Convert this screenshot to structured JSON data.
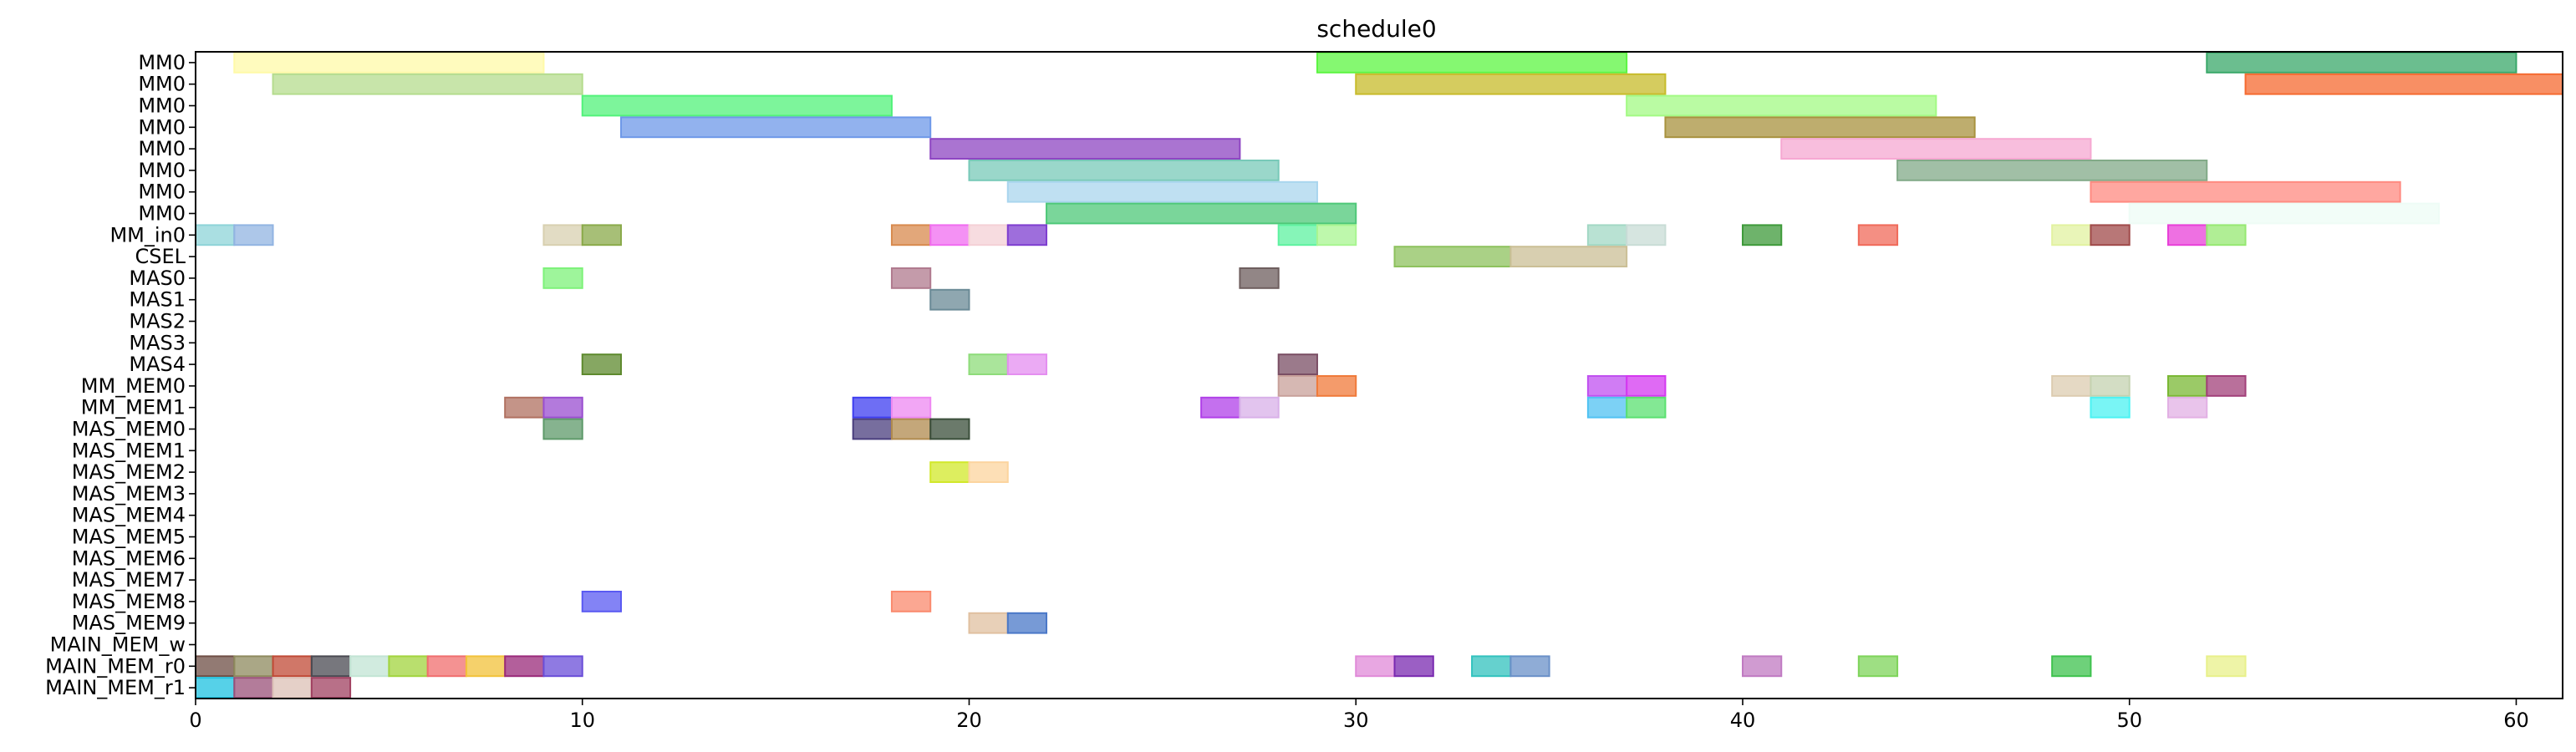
{
  "chart_data": {
    "type": "gantt",
    "title": "schedule0",
    "xlabel": "",
    "ylabel": "",
    "xlim": [
      0,
      61.2
    ],
    "x_ticks": [
      0,
      10,
      20,
      30,
      40,
      50,
      60
    ],
    "grid": false,
    "rows": [
      "MM0",
      "MM0",
      "MM0",
      "MM0",
      "MM0",
      "MM0",
      "MM0",
      "MM0",
      "MM_in0",
      "CSEL",
      "MAS0",
      "MAS1",
      "MAS2",
      "MAS3",
      "MAS4",
      "MM_MEM0",
      "MM_MEM1",
      "MAS_MEM0",
      "MAS_MEM1",
      "MAS_MEM2",
      "MAS_MEM3",
      "MAS_MEM4",
      "MAS_MEM5",
      "MAS_MEM6",
      "MAS_MEM7",
      "MAS_MEM8",
      "MAS_MEM9",
      "MAIN_MEM_w",
      "MAIN_MEM_r0",
      "MAIN_MEM_r1"
    ],
    "tasks": [
      {
        "row": 0,
        "start": 1,
        "end": 9,
        "color": "#fffaa8"
      },
      {
        "row": 0,
        "start": 29,
        "end": 37,
        "color": "#5cf542"
      },
      {
        "row": 0,
        "start": 52,
        "end": 60,
        "color": "#3aa86a"
      },
      {
        "row": 1,
        "start": 2,
        "end": 10,
        "color": "#b5dc8e"
      },
      {
        "row": 1,
        "start": 30,
        "end": 38,
        "color": "#c7bb2a"
      },
      {
        "row": 1,
        "start": 53,
        "end": 61.2,
        "color": "#f56a30"
      },
      {
        "row": 2,
        "start": 10,
        "end": 18,
        "color": "#52f27a"
      },
      {
        "row": 2,
        "start": 37,
        "end": 45,
        "color": "#a3fa84"
      },
      {
        "row": 3,
        "start": 11,
        "end": 19,
        "color": "#6e98e8"
      },
      {
        "row": 3,
        "start": 38,
        "end": 46,
        "color": "#a8923e"
      },
      {
        "row": 4,
        "start": 19,
        "end": 27,
        "color": "#8e46c2"
      },
      {
        "row": 4,
        "start": 41,
        "end": 49,
        "color": "#f6a8d2"
      },
      {
        "row": 5,
        "start": 20,
        "end": 28,
        "color": "#78c9b8"
      },
      {
        "row": 5,
        "start": 44,
        "end": 52,
        "color": "#82aa88"
      },
      {
        "row": 6,
        "start": 21,
        "end": 29,
        "color": "#a9d5ee"
      },
      {
        "row": 6,
        "start": 49,
        "end": 57,
        "color": "#ff8a80"
      },
      {
        "row": 7,
        "start": 22,
        "end": 30,
        "color": "#4ec878"
      },
      {
        "row": 7,
        "start": 50,
        "end": 58,
        "color": "#eefcf6"
      },
      {
        "row": 8,
        "start": 0,
        "end": 1,
        "color": "#8ed4d8"
      },
      {
        "row": 8,
        "start": 1,
        "end": 2,
        "color": "#92b4e2"
      },
      {
        "row": 8,
        "start": 9,
        "end": 10,
        "color": "#d8d0b0"
      },
      {
        "row": 8,
        "start": 10,
        "end": 11,
        "color": "#8aaa4a"
      },
      {
        "row": 8,
        "start": 18,
        "end": 19,
        "color": "#d88a4e"
      },
      {
        "row": 8,
        "start": 19,
        "end": 20,
        "color": "#f06cf0"
      },
      {
        "row": 8,
        "start": 20,
        "end": 21,
        "color": "#f4d0d6"
      },
      {
        "row": 8,
        "start": 21,
        "end": 22,
        "color": "#7e3ed0"
      },
      {
        "row": 8,
        "start": 28,
        "end": 29,
        "color": "#5ef2a0"
      },
      {
        "row": 8,
        "start": 29,
        "end": 30,
        "color": "#a8f590"
      },
      {
        "row": 8,
        "start": 36,
        "end": 37,
        "color": "#a2d8c4"
      },
      {
        "row": 8,
        "start": 37,
        "end": 38,
        "color": "#c8dcd6"
      },
      {
        "row": 8,
        "start": 40,
        "end": 41,
        "color": "#3e9a3a"
      },
      {
        "row": 8,
        "start": 43,
        "end": 44,
        "color": "#f06a5a"
      },
      {
        "row": 8,
        "start": 48,
        "end": 49,
        "color": "#e2f2a0"
      },
      {
        "row": 8,
        "start": 49,
        "end": 50,
        "color": "#a04a4a"
      },
      {
        "row": 8,
        "start": 51,
        "end": 52,
        "color": "#e840d8"
      },
      {
        "row": 8,
        "start": 52,
        "end": 53,
        "color": "#96e872"
      },
      {
        "row": 9,
        "start": 31,
        "end": 34,
        "color": "#8ec25e"
      },
      {
        "row": 9,
        "start": 34,
        "end": 37,
        "color": "#cbbf96"
      },
      {
        "row": 10,
        "start": 9,
        "end": 10,
        "color": "#7ef27a"
      },
      {
        "row": 10,
        "start": 18,
        "end": 19,
        "color": "#b07a8e"
      },
      {
        "row": 10,
        "start": 27,
        "end": 28,
        "color": "#6e5e5e"
      },
      {
        "row": 11,
        "start": 19,
        "end": 20,
        "color": "#6a8a96"
      },
      {
        "row": 14,
        "start": 10,
        "end": 11,
        "color": "#5e8a2e"
      },
      {
        "row": 14,
        "start": 20,
        "end": 21,
        "color": "#8edc7a"
      },
      {
        "row": 14,
        "start": 21,
        "end": 22,
        "color": "#e48ef0"
      },
      {
        "row": 14,
        "start": 28,
        "end": 29,
        "color": "#7a4e64"
      },
      {
        "row": 15,
        "start": 28,
        "end": 29,
        "color": "#c8a09a"
      },
      {
        "row": 15,
        "start": 29,
        "end": 30,
        "color": "#f07a3a"
      },
      {
        "row": 15,
        "start": 36,
        "end": 37,
        "color": "#c050f0"
      },
      {
        "row": 15,
        "start": 37,
        "end": 38,
        "color": "#d438f0"
      },
      {
        "row": 15,
        "start": 48,
        "end": 49,
        "color": "#dcccb0"
      },
      {
        "row": 15,
        "start": 49,
        "end": 50,
        "color": "#c4d2b0"
      },
      {
        "row": 15,
        "start": 51,
        "end": 52,
        "color": "#7ab834"
      },
      {
        "row": 15,
        "start": 52,
        "end": 53,
        "color": "#a2407a"
      },
      {
        "row": 16,
        "start": 8,
        "end": 9,
        "color": "#b07060"
      },
      {
        "row": 16,
        "start": 9,
        "end": 10,
        "color": "#9a4ed0"
      },
      {
        "row": 16,
        "start": 17,
        "end": 18,
        "color": "#3e3ef0"
      },
      {
        "row": 16,
        "start": 18,
        "end": 19,
        "color": "#ee88f2"
      },
      {
        "row": 16,
        "start": 26,
        "end": 27,
        "color": "#b040e8"
      },
      {
        "row": 16,
        "start": 27,
        "end": 28,
        "color": "#d8b0e8"
      },
      {
        "row": 16,
        "start": 36,
        "end": 37,
        "color": "#50c2f2"
      },
      {
        "row": 16,
        "start": 37,
        "end": 38,
        "color": "#5ae070"
      },
      {
        "row": 16,
        "start": 49,
        "end": 50,
        "color": "#4cf2f2"
      },
      {
        "row": 16,
        "start": 51,
        "end": 52,
        "color": "#e2b0e4"
      },
      {
        "row": 17,
        "start": 9,
        "end": 10,
        "color": "#5e9a6a"
      },
      {
        "row": 17,
        "start": 17,
        "end": 18,
        "color": "#4a3e7e"
      },
      {
        "row": 17,
        "start": 18,
        "end": 19,
        "color": "#b08a4e"
      },
      {
        "row": 17,
        "start": 19,
        "end": 20,
        "color": "#3a4e3a"
      },
      {
        "row": 19,
        "start": 19,
        "end": 20,
        "color": "#d2e82a"
      },
      {
        "row": 19,
        "start": 20,
        "end": 21,
        "color": "#fcd49e"
      },
      {
        "row": 25,
        "start": 10,
        "end": 11,
        "color": "#5a5af2"
      },
      {
        "row": 25,
        "start": 18,
        "end": 19,
        "color": "#fa8a6e"
      },
      {
        "row": 26,
        "start": 20,
        "end": 21,
        "color": "#e0c0a0"
      },
      {
        "row": 26,
        "start": 21,
        "end": 22,
        "color": "#4a78c8"
      },
      {
        "row": 28,
        "start": 0,
        "end": 1,
        "color": "#6e4e44"
      },
      {
        "row": 28,
        "start": 1,
        "end": 2,
        "color": "#8e8a5e"
      },
      {
        "row": 28,
        "start": 2,
        "end": 3,
        "color": "#c04a36"
      },
      {
        "row": 28,
        "start": 3,
        "end": 4,
        "color": "#4a4a52"
      },
      {
        "row": 28,
        "start": 4,
        "end": 5,
        "color": "#c2e4d4"
      },
      {
        "row": 28,
        "start": 5,
        "end": 6,
        "color": "#a2d43e"
      },
      {
        "row": 28,
        "start": 6,
        "end": 7,
        "color": "#f06e6e"
      },
      {
        "row": 28,
        "start": 7,
        "end": 8,
        "color": "#f2c23a"
      },
      {
        "row": 28,
        "start": 8,
        "end": 9,
        "color": "#9a2a7a"
      },
      {
        "row": 28,
        "start": 9,
        "end": 10,
        "color": "#6a4ed8"
      },
      {
        "row": 28,
        "start": 30,
        "end": 31,
        "color": "#e08ad8"
      },
      {
        "row": 28,
        "start": 31,
        "end": 32,
        "color": "#7a2ab0"
      },
      {
        "row": 28,
        "start": 33,
        "end": 34,
        "color": "#32c2be"
      },
      {
        "row": 28,
        "start": 34,
        "end": 35,
        "color": "#6a90c8"
      },
      {
        "row": 28,
        "start": 40,
        "end": 41,
        "color": "#c07ac2"
      },
      {
        "row": 28,
        "start": 43,
        "end": 44,
        "color": "#7ed45a"
      },
      {
        "row": 28,
        "start": 48,
        "end": 49,
        "color": "#3ec24e"
      },
      {
        "row": 28,
        "start": 52,
        "end": 53,
        "color": "#e8f08a"
      },
      {
        "row": 29,
        "start": 0,
        "end": 1,
        "color": "#1ec2e0"
      },
      {
        "row": 29,
        "start": 1,
        "end": 2,
        "color": "#9a5078"
      },
      {
        "row": 29,
        "start": 2,
        "end": 3,
        "color": "#dcc0b6"
      },
      {
        "row": 29,
        "start": 3,
        "end": 4,
        "color": "#a04060"
      }
    ]
  }
}
